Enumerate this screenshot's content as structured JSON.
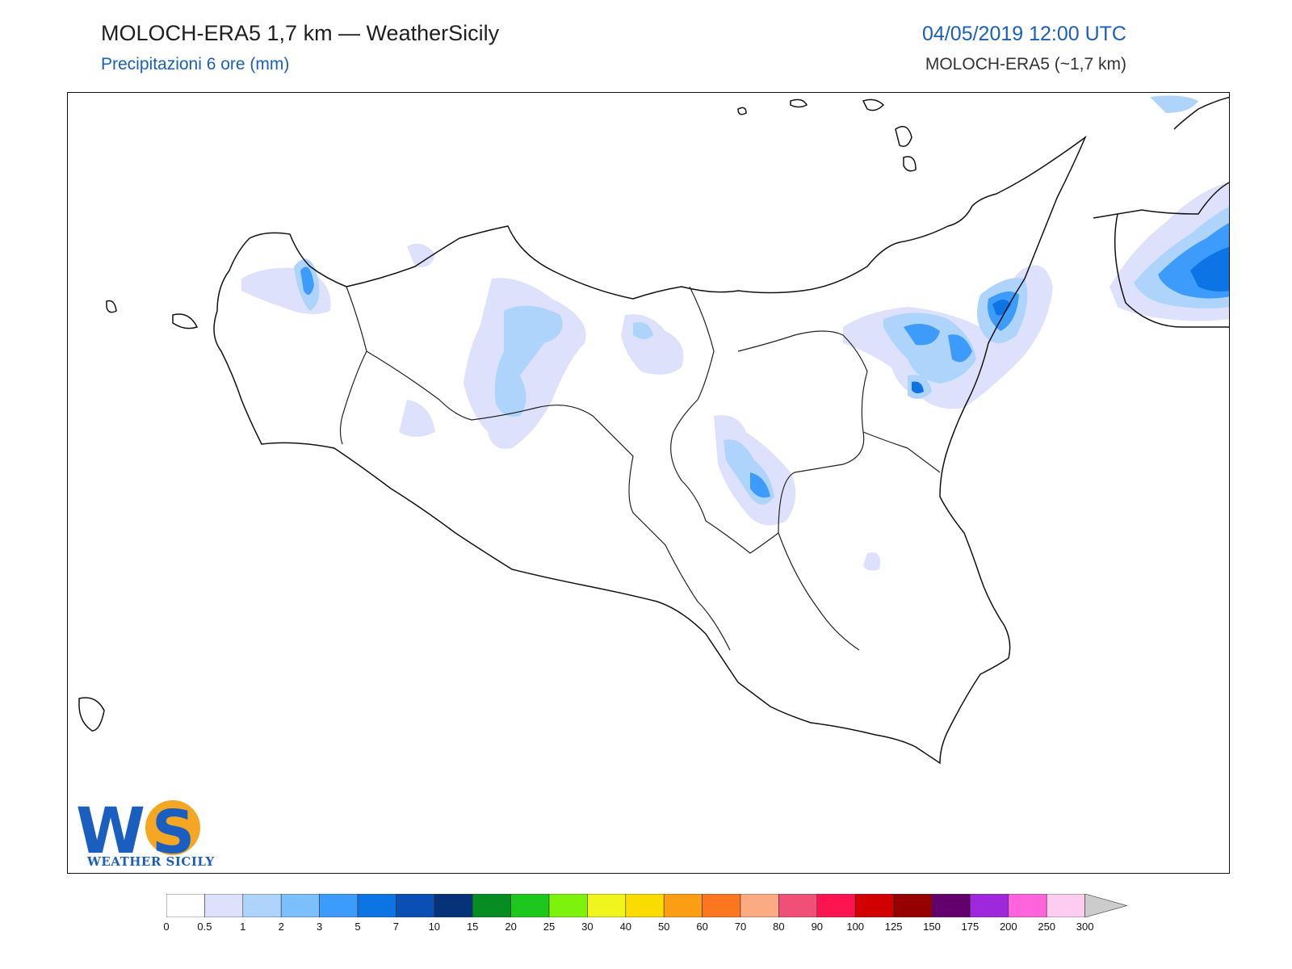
{
  "header": {
    "title": "MOLOCH-ERA5 1,7 km — WeatherSicily",
    "subtitle": "Precipitazioni 6 ore (mm)",
    "datetime": "04/05/2019 12:00 UTC",
    "model": "MOLOCH-ERA5 (~1,7 km)"
  },
  "logo": {
    "text": "WEATHER SICILY",
    "letters": "WS"
  },
  "colorbar": {
    "ticks": [
      "0",
      "0.5",
      "1",
      "2",
      "3",
      "5",
      "7",
      "10",
      "15",
      "20",
      "25",
      "30",
      "40",
      "50",
      "60",
      "70",
      "80",
      "90",
      "100",
      "125",
      "150",
      "175",
      "200",
      "250",
      "300"
    ],
    "colors": [
      "#ffffff",
      "#dde1fb",
      "#aed4fc",
      "#7cbffd",
      "#3d9cfb",
      "#0c74e5",
      "#0a50b4",
      "#053278",
      "#078c22",
      "#1dc71d",
      "#7df20c",
      "#f0f51d",
      "#fbdc00",
      "#fb9e13",
      "#fc7620",
      "#fcaa81",
      "#f05078",
      "#fc1450",
      "#d20000",
      "#960000",
      "#64006e",
      "#a028dc",
      "#ff64dc",
      "#fccdf0"
    ],
    "extend_color": "#cccccc"
  }
}
